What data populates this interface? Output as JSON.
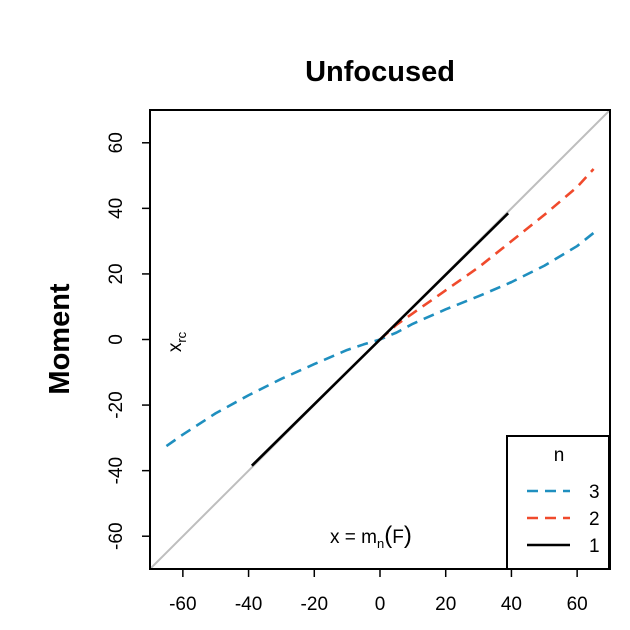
{
  "chart_data": {
    "type": "line",
    "title": "Unfocused",
    "ylabel": "Moment",
    "xlabel": "",
    "xlim": [
      -70,
      70
    ],
    "ylim": [
      -70,
      70
    ],
    "x_ticks": [
      -60,
      -40,
      -20,
      0,
      20,
      40,
      60
    ],
    "y_ticks": [
      -60,
      -40,
      -20,
      0,
      20,
      40,
      60
    ],
    "grid": false,
    "reference_line": {
      "type": "identity",
      "color": "#BEBEBE"
    },
    "annotations": {
      "xrc": {
        "main": "x",
        "sub": "rc"
      },
      "formula": {
        "pre": "x = m",
        "sub": "n",
        "post": "F"
      }
    },
    "legend": {
      "title": "n",
      "position": "bottom-right",
      "entries": [
        {
          "label": "3",
          "color": "#1F8FBF",
          "dash": "dashed"
        },
        {
          "label": "2",
          "color": "#F04A2C",
          "dash": "dashed"
        },
        {
          "label": "1",
          "color": "#000000",
          "dash": "solid"
        }
      ]
    },
    "series": [
      {
        "name": "3",
        "color": "#1F8FBF",
        "dash": "dashed",
        "x": [
          -65,
          -60,
          -50,
          -40,
          -30,
          -20,
          -10,
          -5,
          0,
          5,
          10,
          20,
          30,
          40,
          50,
          60,
          65
        ],
        "y": [
          -32.5,
          -29.0,
          -22.5,
          -17.0,
          -12.0,
          -7.5,
          -3.2,
          -1.5,
          0,
          2.1,
          4.8,
          9.2,
          13.2,
          17.5,
          22.5,
          28.5,
          32.5
        ]
      },
      {
        "name": "2",
        "color": "#F04A2C",
        "dash": "dashed",
        "x": [
          0,
          5,
          10,
          15,
          20,
          30,
          40,
          50,
          60,
          65
        ],
        "y": [
          0,
          4.5,
          8.0,
          11.5,
          15.0,
          22.0,
          30.0,
          38.0,
          46.5,
          52.0
        ]
      },
      {
        "name": "1",
        "color": "#000000",
        "dash": "solid",
        "x": [
          -39,
          39
        ],
        "y": [
          -38.5,
          38.5
        ]
      }
    ]
  }
}
